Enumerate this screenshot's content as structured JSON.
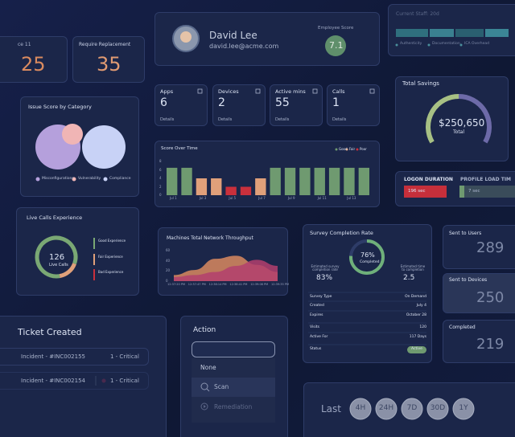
{
  "top_cards": [
    {
      "label": "ce 11",
      "value": "25"
    },
    {
      "label": "Require Replacement",
      "value": "35"
    }
  ],
  "profile": {
    "name": "David Lee",
    "email": "david.lee@acme.com",
    "score_label": "Employee Score",
    "score": "7.1"
  },
  "staff": {
    "title": "Current Staff: 20d",
    "legend": [
      "Authenticity",
      "Documentation",
      "ICA Overhead"
    ]
  },
  "stats": [
    {
      "label": "Apps",
      "value": "6",
      "link": "Details"
    },
    {
      "label": "Devices",
      "value": "2",
      "link": "Details"
    },
    {
      "label": "Active mins",
      "value": "55",
      "link": "Details"
    },
    {
      "label": "Calls",
      "value": "1",
      "link": "Details"
    }
  ],
  "savings": {
    "title": "Total Savings",
    "value": "$250,650",
    "label": "Total"
  },
  "issue_score": {
    "title": "Issue Score by Category",
    "legend": [
      "Misconfigurations",
      "Vulnerability",
      "Compliance"
    ]
  },
  "score_chart": {
    "type": "bar",
    "title": "Score Over Time",
    "categories": [
      "Jul 1",
      null,
      "Jul 3",
      null,
      "Jul 5",
      null,
      "Jul 7",
      null,
      "Jul 9",
      null,
      "Jul 11",
      null,
      "Jul 13",
      null
    ],
    "series": [
      {
        "name": "Good",
        "color": "#6f9a70",
        "values": [
          6.5,
          6.5,
          null,
          null,
          null,
          null,
          null,
          6.5,
          6.5,
          6.5,
          6.5,
          6.5,
          6.5,
          6.5
        ]
      },
      {
        "name": "Fair",
        "color": "#e0a07a",
        "values": [
          null,
          null,
          4,
          4,
          null,
          null,
          4,
          null,
          null,
          null,
          null,
          null,
          null,
          null
        ]
      },
      {
        "name": "Poor",
        "color": "#c9303c",
        "values": [
          null,
          null,
          null,
          null,
          2,
          2,
          null,
          null,
          null,
          null,
          null,
          null,
          null,
          null
        ]
      }
    ],
    "ylim": [
      0,
      8
    ],
    "yticks": [
      0,
      2,
      4,
      6,
      8
    ]
  },
  "logon": {
    "title": "LOGON DURATION",
    "value": "196 sec",
    "title2": "PROFILE LOAD TIM",
    "value2": "7 sec"
  },
  "live_calls": {
    "title": "Live Calls Experience",
    "value": "126",
    "label": "Live Calls",
    "legend": [
      "Good Experience",
      "Fair Experience",
      "Bad Experience"
    ]
  },
  "throughput": {
    "type": "area",
    "title": "Machines Total Network Throughput",
    "x": [
      "12:37:20 PM",
      "12:37:47 PM",
      "12:38:14 PM",
      "12:38:41 PM",
      "12:39:08 PM",
      "12:39:35 PM"
    ],
    "series": [
      {
        "color": "#d98a5f",
        "values": [
          12,
          22,
          44,
          50,
          32,
          18
        ]
      },
      {
        "color": "#b3406d",
        "values": [
          8,
          12,
          18,
          30,
          42,
          30
        ]
      }
    ],
    "ylim": [
      0,
      60
    ],
    "yticks": [
      0,
      20,
      40,
      60
    ]
  },
  "survey": {
    "title": "Survey Completion Rate",
    "rate": "76%",
    "rate_label": "Completed",
    "est_label": "Estimated survey completion rate",
    "est": "83%",
    "time_label": "Estimated time to completion",
    "time": "2.5",
    "rows": [
      [
        "Survey Type",
        "On Demand"
      ],
      [
        "Created",
        "July 4"
      ],
      [
        "Expires",
        "October 28"
      ],
      [
        "Visits",
        "120"
      ],
      [
        "Active For",
        "117 Days"
      ],
      [
        "Status",
        "Active"
      ]
    ]
  },
  "sent": [
    {
      "label": "Sent to Users",
      "value": "289"
    },
    {
      "label": "Sent to Devices",
      "value": "250"
    },
    {
      "label": "Completed",
      "value": "219"
    }
  ],
  "tickets": {
    "title": "Ticket Created",
    "items": [
      {
        "name": "Incident - #INC002155",
        "priority": "1 - Critical"
      },
      {
        "name": "Incident - #INC002154",
        "priority": "1 - Critical"
      }
    ]
  },
  "action": {
    "title": "Action",
    "options": [
      "None",
      "Scan",
      "Remediation"
    ]
  },
  "range": {
    "label": "Last",
    "options": [
      "4H",
      "24H",
      "7D",
      "30D",
      "1Y"
    ]
  }
}
